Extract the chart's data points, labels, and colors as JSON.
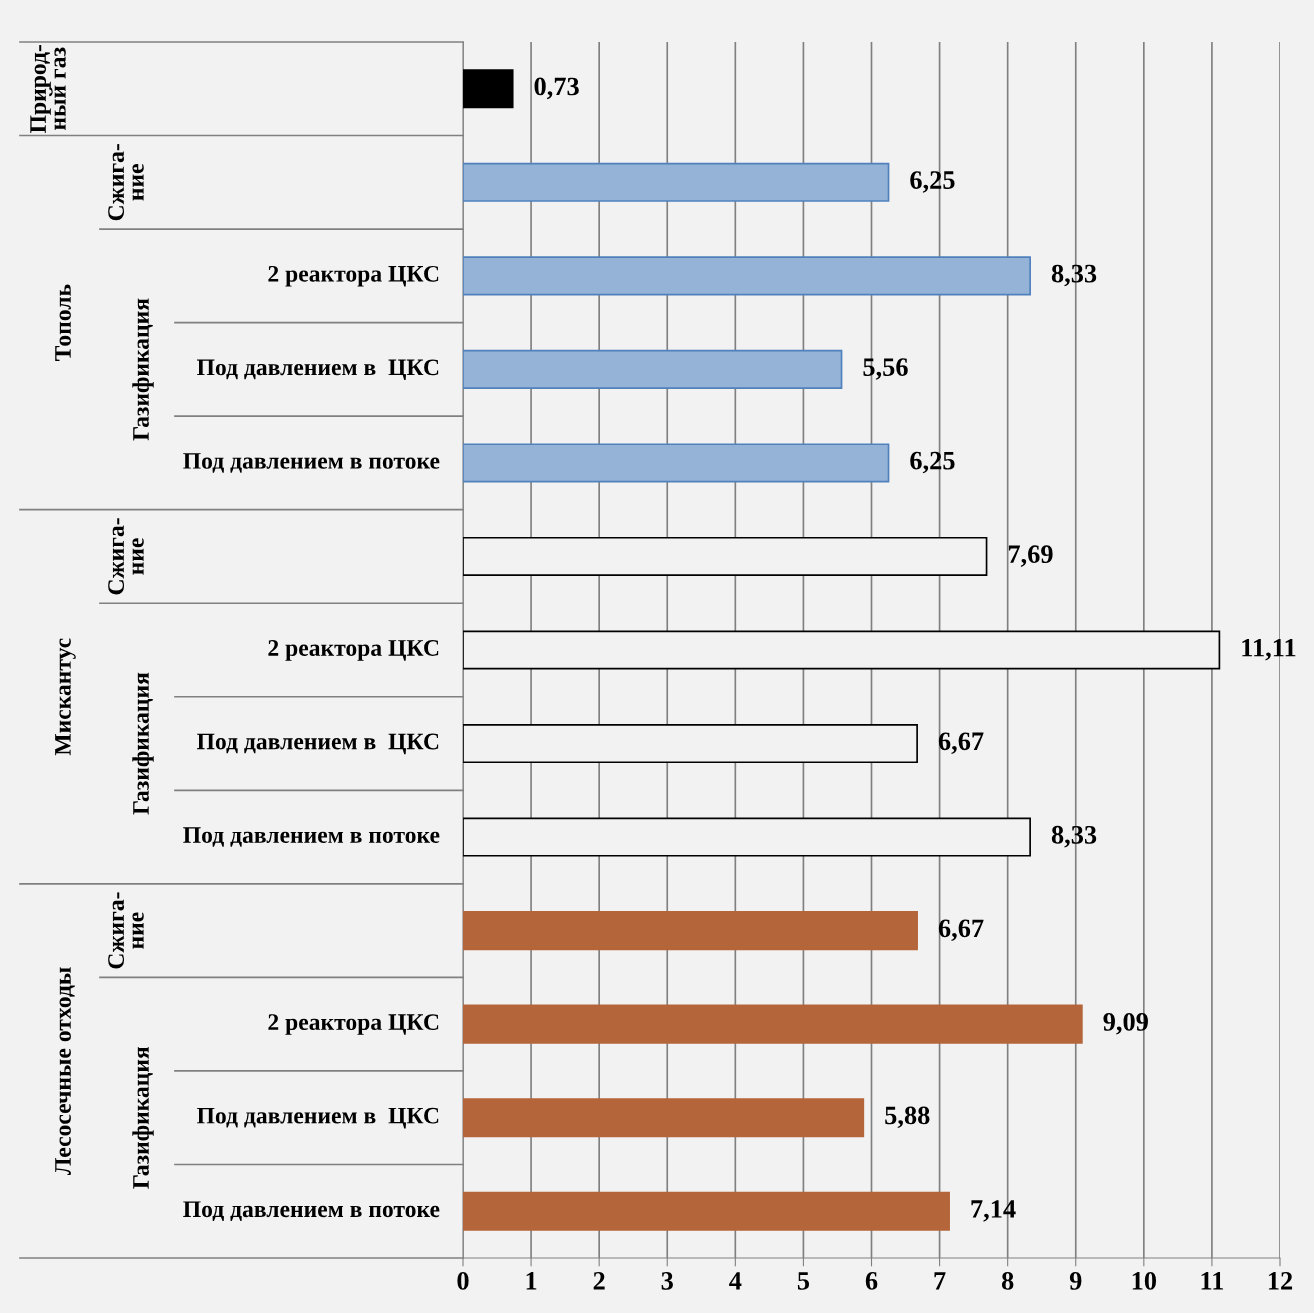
{
  "chart_data": {
    "type": "bar",
    "orientation": "horizontal",
    "categories": [
      null,
      null,
      "2 реактора ЦКС",
      "Под давлением в  ЦКС",
      "Под давлением в потоке",
      null,
      "2 реактора ЦКС",
      "Под давлением в  ЦКС",
      "Под давлением в потоке",
      null,
      "2 реактора ЦКС",
      "Под давлением в  ЦКС",
      "Под давлением в потоке"
    ],
    "values": [
      0.73,
      6.25,
      8.33,
      5.56,
      6.25,
      7.69,
      11.11,
      6.67,
      8.33,
      6.67,
      9.09,
      5.88,
      7.14
    ],
    "colors": [
      "#000000",
      "#95b3d7",
      "#95b3d7",
      "#95b3d7",
      "#95b3d7",
      "#f2f2f2",
      "#f2f2f2",
      "#f2f2f2",
      "#f2f2f2",
      "#b5653a",
      "#b5653a",
      "#b5653a",
      "#b5653a"
    ],
    "annotations": [
      "Природ-\nный газ",
      "Тополь",
      "Мискантус",
      "Лесосечные отходы",
      "Сжига-\nние",
      "Газификация",
      "Сжига-\nние",
      "Газификация",
      "Сжига-\nние",
      "Газификация"
    ],
    "value_labels": [
      "0,73",
      "6,25",
      "8,33",
      "5,56",
      "6,25",
      "7,69",
      "11,11",
      "6,67",
      "8,33",
      "6,67",
      "9,09",
      "5,88",
      "7,14"
    ],
    "xlim": [
      0,
      12
    ],
    "xticks": [
      0,
      1,
      2,
      3,
      4,
      5,
      6,
      7,
      8,
      9,
      10,
      11,
      12
    ],
    "grid": "x"
  }
}
